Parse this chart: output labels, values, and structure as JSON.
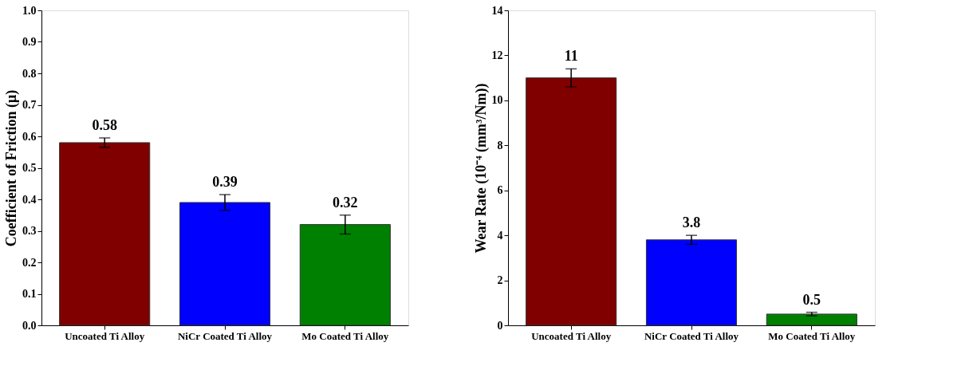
{
  "chart_data": [
    {
      "type": "bar",
      "ylabel": "Coefficient of Friction (μ)",
      "categories": [
        "Uncoated Ti Alloy",
        "NiCr Coated Ti Alloy",
        "Mo Coated Ti Alloy"
      ],
      "values": [
        0.58,
        0.39,
        0.32
      ],
      "colors": [
        "#800000",
        "#0000ff",
        "#008000"
      ],
      "errors": [
        0.015,
        0.025,
        0.03
      ],
      "ylim": [
        0,
        1.0
      ],
      "yticks": [
        {
          "value": 0,
          "label": "0.0"
        },
        0.1,
        0.2,
        0.3,
        0.4,
        0.5,
        0.6,
        0.7,
        0.8,
        0.9,
        {
          "value": 1.0,
          "label": "1.0"
        }
      ],
      "data_labels": true,
      "grid": false
    },
    {
      "type": "bar",
      "ylabel": "Wear Rate (10⁻⁴ (mm³/Nm))",
      "categories": [
        "Uncoated Ti Alloy",
        "NiCr Coated Ti Alloy",
        "Mo Coated Ti Alloy"
      ],
      "values": [
        11,
        3.8,
        0.5
      ],
      "colors": [
        "#800000",
        "#0000ff",
        "#008000"
      ],
      "errors": [
        0.4,
        0.2,
        0.08
      ],
      "ylim": [
        0,
        14
      ],
      "yticks": [
        0,
        2,
        4,
        6,
        8,
        10,
        12,
        14
      ],
      "data_labels": true,
      "grid": false
    }
  ]
}
